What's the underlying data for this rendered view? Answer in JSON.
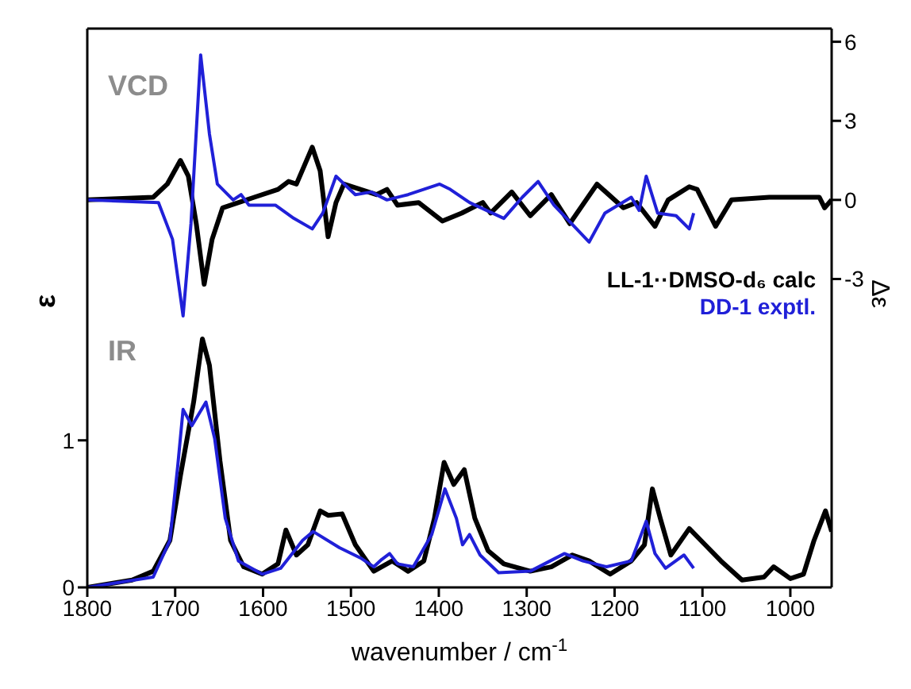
{
  "chart_data": {
    "type": "line",
    "xlabel": "wavenumber / cm$^{-1}$",
    "ylabel": "ε",
    "y2label": "Δε",
    "annotations": [
      "VCD",
      "IR"
    ],
    "xlim": [
      1800,
      953
    ],
    "xticks": [
      1800,
      1700,
      1600,
      1500,
      1400,
      1300,
      1200,
      1100,
      1000
    ],
    "ylim": [
      0,
      3.8
    ],
    "yticks": [
      0,
      1
    ],
    "y2lim": [
      -14.7,
      6.5
    ],
    "y2ticks": [
      -3,
      0,
      3,
      6
    ],
    "legend": "right",
    "marker": "none",
    "line_style": "solid",
    "series": [
      {
        "name": "LL-1··DMSO-d₆ calc",
        "color": "#000000",
        "axis": "y",
        "x": [
          1800,
          1749,
          1725,
          1706,
          1694,
          1679,
          1669,
          1661,
          1649,
          1637,
          1622,
          1601,
          1583,
          1574,
          1562,
          1549,
          1535,
          1526,
          1510,
          1495,
          1474,
          1453,
          1435,
          1417,
          1405,
          1394,
          1383,
          1371,
          1359,
          1344,
          1326,
          1296,
          1272,
          1248,
          1229,
          1205,
          1181,
          1166,
          1157,
          1148,
          1136,
          1115,
          1097,
          1079,
          1055,
          1030,
          1019,
          1000,
          985,
          973,
          960,
          953
        ],
        "values": [
          0,
          0.05,
          0.11,
          0.32,
          0.76,
          1.26,
          1.69,
          1.51,
          0.86,
          0.32,
          0.14,
          0.09,
          0.16,
          0.39,
          0.22,
          0.29,
          0.52,
          0.49,
          0.5,
          0.29,
          0.11,
          0.18,
          0.11,
          0.18,
          0.47,
          0.85,
          0.7,
          0.8,
          0.47,
          0.25,
          0.16,
          0.11,
          0.14,
          0.22,
          0.18,
          0.09,
          0.18,
          0.29,
          0.67,
          0.47,
          0.22,
          0.4,
          0.29,
          0.18,
          0.05,
          0.07,
          0.14,
          0.06,
          0.09,
          0.32,
          0.52,
          0.38
        ]
      },
      {
        "name": "DD-1 exptl.",
        "color": "#2020d8",
        "axis": "y",
        "x": [
          1800,
          1725,
          1706,
          1697,
          1691,
          1681,
          1665,
          1655,
          1643,
          1628,
          1601,
          1580,
          1555,
          1543,
          1513,
          1489,
          1474,
          1465,
          1456,
          1447,
          1429,
          1408,
          1393,
          1380,
          1373,
          1365,
          1353,
          1332,
          1296,
          1257,
          1236,
          1209,
          1181,
          1164,
          1154,
          1142,
          1121,
          1110
        ],
        "values": [
          0,
          0.07,
          0.32,
          0.83,
          1.21,
          1.1,
          1.26,
          1.01,
          0.47,
          0.18,
          0.09,
          0.13,
          0.32,
          0.38,
          0.27,
          0.2,
          0.14,
          0.19,
          0.23,
          0.16,
          0.14,
          0.36,
          0.67,
          0.47,
          0.29,
          0.36,
          0.22,
          0.1,
          0.11,
          0.23,
          0.18,
          0.14,
          0.18,
          0.45,
          0.23,
          0.13,
          0.22,
          0.13
        ]
      },
      {
        "color": "#000000",
        "axis": "y2",
        "x": [
          1800,
          1725,
          1709,
          1694,
          1685,
          1676,
          1667,
          1658,
          1646,
          1610,
          1583,
          1571,
          1562,
          1544,
          1535,
          1526,
          1517,
          1508,
          1471,
          1459,
          1447,
          1423,
          1396,
          1374,
          1350,
          1341,
          1317,
          1296,
          1272,
          1251,
          1220,
          1190,
          1175,
          1154,
          1139,
          1115,
          1106,
          1085,
          1067,
          1024,
          967,
          961,
          953
        ],
        "values": [
          0,
          0.1,
          0.6,
          1.5,
          0.9,
          -0.9,
          -3.2,
          -1.5,
          -0.3,
          0.1,
          0.4,
          0.7,
          0.6,
          2,
          1.1,
          -1.4,
          -0.1,
          0.6,
          0.2,
          0.4,
          -0.2,
          -0.1,
          -0.8,
          -0.5,
          -0.1,
          -0.5,
          0.3,
          -0.6,
          0.2,
          -0.9,
          0.6,
          -0.3,
          -0.1,
          -1,
          0,
          0.5,
          0.4,
          -1,
          0,
          0.1,
          0.1,
          -0.3,
          0
        ]
      },
      {
        "color": "#2020d8",
        "axis": "y2",
        "x": [
          1800,
          1719,
          1703,
          1691,
          1682,
          1671,
          1661,
          1652,
          1634,
          1625,
          1616,
          1586,
          1565,
          1544,
          1532,
          1517,
          1495,
          1477,
          1459,
          1435,
          1399,
          1387,
          1365,
          1326,
          1305,
          1287,
          1269,
          1229,
          1211,
          1181,
          1172,
          1164,
          1151,
          1130,
          1115,
          1110
        ],
        "values": [
          0,
          -0.1,
          -1.5,
          -4.4,
          -0.9,
          5.5,
          2.5,
          0.6,
          0,
          0.2,
          -0.2,
          -0.2,
          -0.7,
          -1.1,
          -0.5,
          0.9,
          0.2,
          0.3,
          0,
          0.2,
          0.6,
          0.4,
          -0.1,
          -0.7,
          0.1,
          0.7,
          -0.2,
          -1.6,
          -0.5,
          0.1,
          -0.4,
          0.9,
          -0.5,
          -0.6,
          -1.1,
          -0.5
        ]
      }
    ]
  }
}
